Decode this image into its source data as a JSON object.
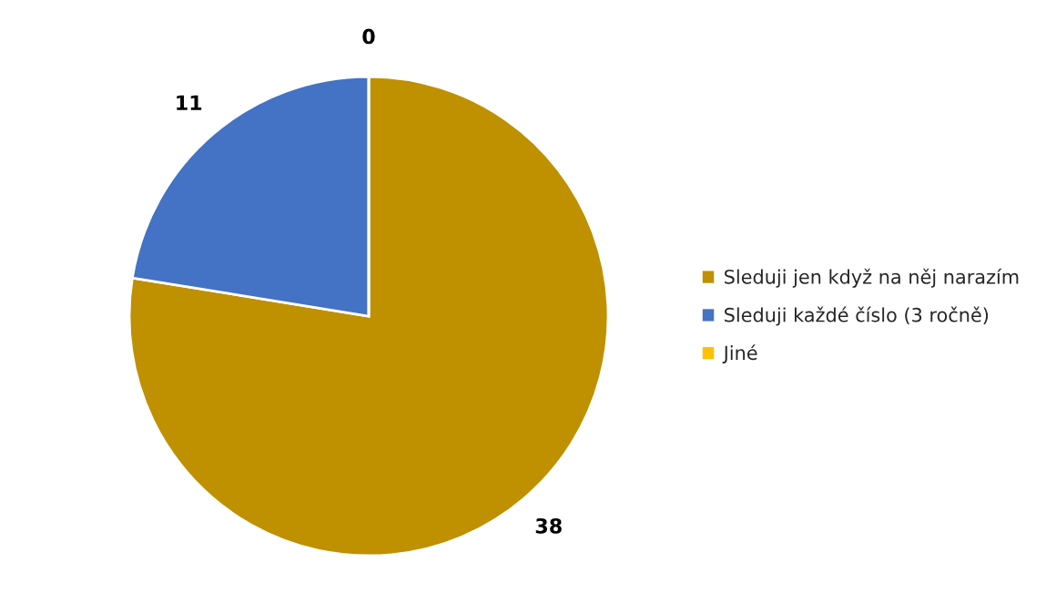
{
  "chart_data": {
    "type": "pie",
    "categories": [
      "Sleduji jen když na něj narazím",
      "Sleduji každé číslo (3 ročně)",
      "Jiné"
    ],
    "values": [
      38,
      11,
      0
    ],
    "colors": [
      "#bf9000",
      "#4472c4",
      "#ffc000"
    ],
    "value_labels": [
      "38",
      "11",
      "0"
    ],
    "legend": "right"
  }
}
